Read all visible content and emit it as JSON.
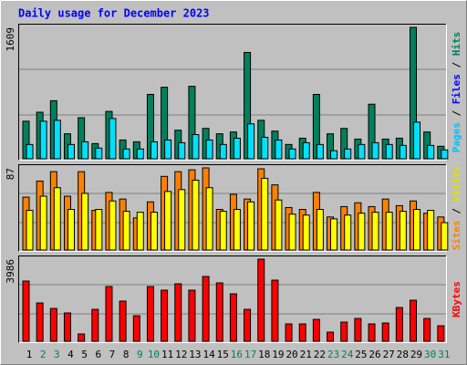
{
  "chart_data": [
    {
      "type": "bar",
      "title": "Daily usage for December 2023",
      "ylim": [
        0,
        1609
      ],
      "yticks": [
        1609
      ],
      "grid": true,
      "legend": [
        {
          "name": "Pages",
          "color": "#00c0ff"
        },
        {
          "name": "Files",
          "color": "#0000ff"
        },
        {
          "name": "Hits",
          "color": "#00805c"
        }
      ],
      "series": [
        {
          "color": "#00805c",
          "values": [
            460,
            570,
            711,
            306,
            503,
            186,
            580,
            230,
            208,
            788,
            876,
            350,
            887,
            372,
            306,
            328,
            1302,
            471,
            339,
            175,
            252,
            788,
            306,
            372,
            241,
            668,
            241,
            252,
            1609,
            328,
            153
          ]
        },
        {
          "color": "#00e0ff",
          "values": [
            175,
            460,
            471,
            175,
            208,
            131,
            493,
            120,
            120,
            208,
            230,
            197,
            296,
            230,
            175,
            252,
            427,
            263,
            230,
            120,
            197,
            175,
            99,
            120,
            175,
            197,
            175,
            164,
            449,
            164,
            109
          ]
        }
      ]
    },
    {
      "type": "bar",
      "ylim": [
        0,
        87
      ],
      "yticks": [
        87
      ],
      "grid": true,
      "legend": [
        {
          "name": "Sites",
          "color": "#ff8000"
        },
        {
          "name": "Visits",
          "color": "#e0e000"
        }
      ],
      "series": [
        {
          "color": "#ff8000",
          "values": [
            56,
            73,
            83,
            57,
            83,
            42,
            61,
            54,
            34,
            51,
            78,
            83,
            85,
            87,
            43,
            59,
            54,
            86,
            69,
            45,
            43,
            61,
            35,
            46,
            50,
            46,
            54,
            47,
            52,
            39,
            35
          ]
        },
        {
          "color": "#ffff00",
          "values": [
            42,
            57,
            66,
            43,
            60,
            43,
            52,
            41,
            40,
            40,
            62,
            64,
            74,
            66,
            41,
            43,
            51,
            76,
            53,
            38,
            37,
            43,
            33,
            37,
            39,
            40,
            40,
            41,
            43,
            42,
            29
          ]
        }
      ]
    },
    {
      "type": "bar",
      "ylim": [
        0,
        3986
      ],
      "yticks": [
        3986
      ],
      "grid": true,
      "legend": [
        {
          "name": "KBytes",
          "color": "#ff0000"
        }
      ],
      "series": [
        {
          "color": "#ff0000",
          "values": [
            2923,
            1860,
            1594,
            1373,
            354,
            1550,
            2657,
            1949,
            1240,
            2657,
            2480,
            2790,
            2480,
            3145,
            2834,
            2303,
            1550,
            3986,
            2967,
            842,
            842,
            1063,
            443,
            930,
            1107,
            842,
            886,
            1639,
            1993,
            1107,
            753
          ]
        }
      ],
      "categories": [
        "1",
        "2",
        "3",
        "4",
        "5",
        "6",
        "7",
        "8",
        "9",
        "10",
        "11",
        "12",
        "13",
        "14",
        "15",
        "16",
        "17",
        "18",
        "19",
        "20",
        "21",
        "22",
        "23",
        "24",
        "25",
        "26",
        "27",
        "28",
        "29",
        "30",
        "31"
      ],
      "label_color": "#000000",
      "highlight_color": "#00805c",
      "highlighted_categories": [
        "2",
        "3",
        "9",
        "10",
        "16",
        "17",
        "23",
        "24",
        "30",
        "31"
      ]
    }
  ]
}
